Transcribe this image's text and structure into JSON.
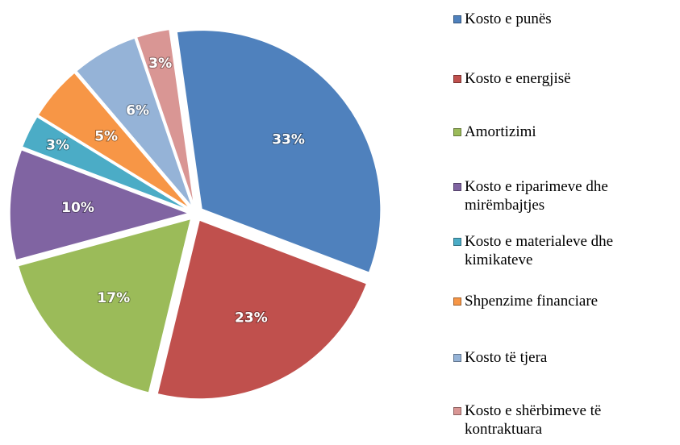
{
  "chart_data": {
    "type": "pie",
    "categories": [
      "Kosto e punës",
      "Kosto e energjisë",
      "Amortizimi",
      "Kosto e riparimeve dhe mirëmbajtjes",
      "Kosto e materialeve dhe kimikateve",
      "Shpenzime financiare",
      "Kosto të tjera",
      "Kosto e shërbimeve të kontraktuara"
    ],
    "values": [
      33,
      23,
      17,
      10,
      3,
      5,
      6,
      3
    ],
    "value_labels": [
      "33%",
      "23%",
      "17%",
      "10%",
      "3%",
      "5%",
      "6%",
      "3%"
    ],
    "colors": [
      "#4f81bd",
      "#c0504d",
      "#9bbb59",
      "#8064a2",
      "#4bacc6",
      "#f79646",
      "#95b3d7",
      "#d99694"
    ],
    "legend": "right"
  }
}
